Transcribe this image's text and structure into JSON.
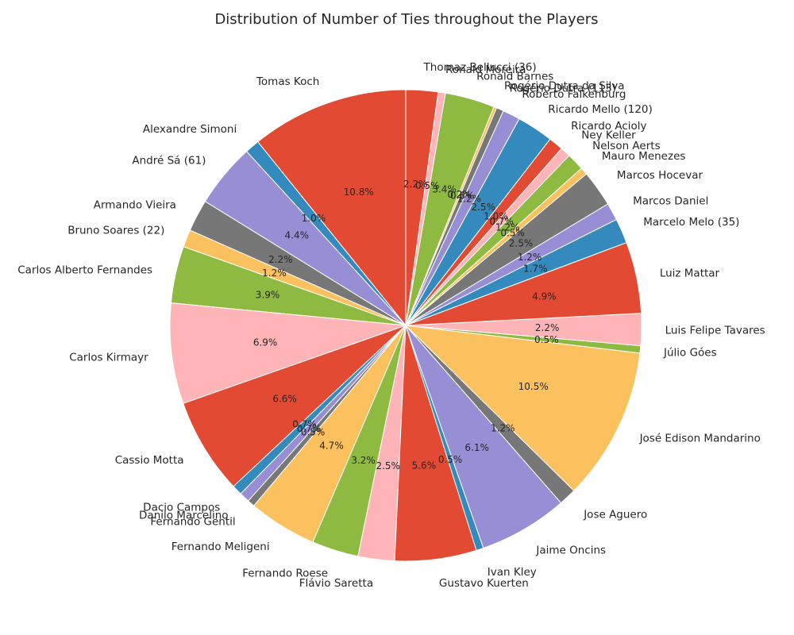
{
  "chart_data": {
    "type": "pie",
    "title": "Distribution of Number of Ties throughout the Players",
    "start_angle_deg": 90,
    "direction": "counterclockwise",
    "colors": [
      "#E24A33",
      "#348ABD",
      "#988ED5",
      "#777777",
      "#FBC15E",
      "#8EBA42",
      "#FFB5B8"
    ],
    "slices": [
      {
        "label": "Tomas Koch",
        "pct": "10.8%",
        "value": 10.8
      },
      {
        "label": "Alexandre Simoni",
        "pct": "1.0%",
        "value": 1.0
      },
      {
        "label": "André Sá (61)",
        "pct": "4.4%",
        "value": 4.4
      },
      {
        "label": "Armando Vieira",
        "pct": "2.2%",
        "value": 2.2
      },
      {
        "label": "Bruno Soares (22)",
        "pct": "1.2%",
        "value": 1.2
      },
      {
        "label": "Carlos Alberto Fernandes",
        "pct": "3.9%",
        "value": 3.9
      },
      {
        "label": "Carlos Kirmayr",
        "pct": "6.9%",
        "value": 6.9
      },
      {
        "label": "Cassio Motta",
        "pct": "6.6%",
        "value": 6.6
      },
      {
        "label": "Dacio Campos",
        "pct": "0.7%",
        "value": 0.7
      },
      {
        "label": "Danilo Marcelino",
        "pct": "0.7%",
        "value": 0.7
      },
      {
        "label": "Fernando Gentil",
        "pct": "0.5%",
        "value": 0.5
      },
      {
        "label": "Fernando Meligeni",
        "pct": "4.7%",
        "value": 4.7
      },
      {
        "label": "Fernando Roese",
        "pct": "3.2%",
        "value": 3.2
      },
      {
        "label": "Flávio Saretta",
        "pct": "2.5%",
        "value": 2.5
      },
      {
        "label": "Gustavo Kuerten",
        "pct": "5.6%",
        "value": 5.6
      },
      {
        "label": "Ivan Kley",
        "pct": "0.5%",
        "value": 0.5
      },
      {
        "label": "Jaime Oncins",
        "pct": "6.1%",
        "value": 6.1
      },
      {
        "label": "Jose Aguero",
        "pct": "1.2%",
        "value": 1.2
      },
      {
        "label": "José Edison Mandarino",
        "pct": "10.5%",
        "value": 10.5
      },
      {
        "label": "Júlio Góes",
        "pct": "0.5%",
        "value": 0.5
      },
      {
        "label": "Luis Felipe Tavares",
        "pct": "2.2%",
        "value": 2.2
      },
      {
        "label": "Luiz Mattar",
        "pct": "4.9%",
        "value": 4.9
      },
      {
        "label": "Marcelo Melo (35)",
        "pct": "1.7%",
        "value": 1.7
      },
      {
        "label": "Marcos Daniel",
        "pct": "1.2%",
        "value": 1.2
      },
      {
        "label": "Marcos Hocevar",
        "pct": "2.5%",
        "value": 2.5
      },
      {
        "label": "Mauro Menezes",
        "pct": "0.5%",
        "value": 0.5
      },
      {
        "label": "Nelson Aerts",
        "pct": "1.2%",
        "value": 1.2
      },
      {
        "label": "Ney Keller",
        "pct": "0.7%",
        "value": 0.7
      },
      {
        "label": "Ricardo Acioly",
        "pct": "1.0%",
        "value": 1.0
      },
      {
        "label": "Ricardo Mello (120)",
        "pct": "2.5%",
        "value": 2.5
      },
      {
        "label": "Roberto Falkenburg",
        "pct": "1.2%",
        "value": 1.2
      },
      {
        "label": "Rogério Dutra (113)",
        "pct": "0.5%",
        "value": 0.5
      },
      {
        "label": "Rogério Dutra da Silva",
        "pct": "0.2%",
        "value": 0.2
      },
      {
        "label": "Ronald Barnes",
        "pct": "3.4%",
        "value": 3.4
      },
      {
        "label": "Ronald Moreira",
        "pct": "0.5%",
        "value": 0.5
      },
      {
        "label": "Thomaz Bellucci (36)",
        "pct": "2.2%",
        "value": 2.2
      }
    ]
  }
}
